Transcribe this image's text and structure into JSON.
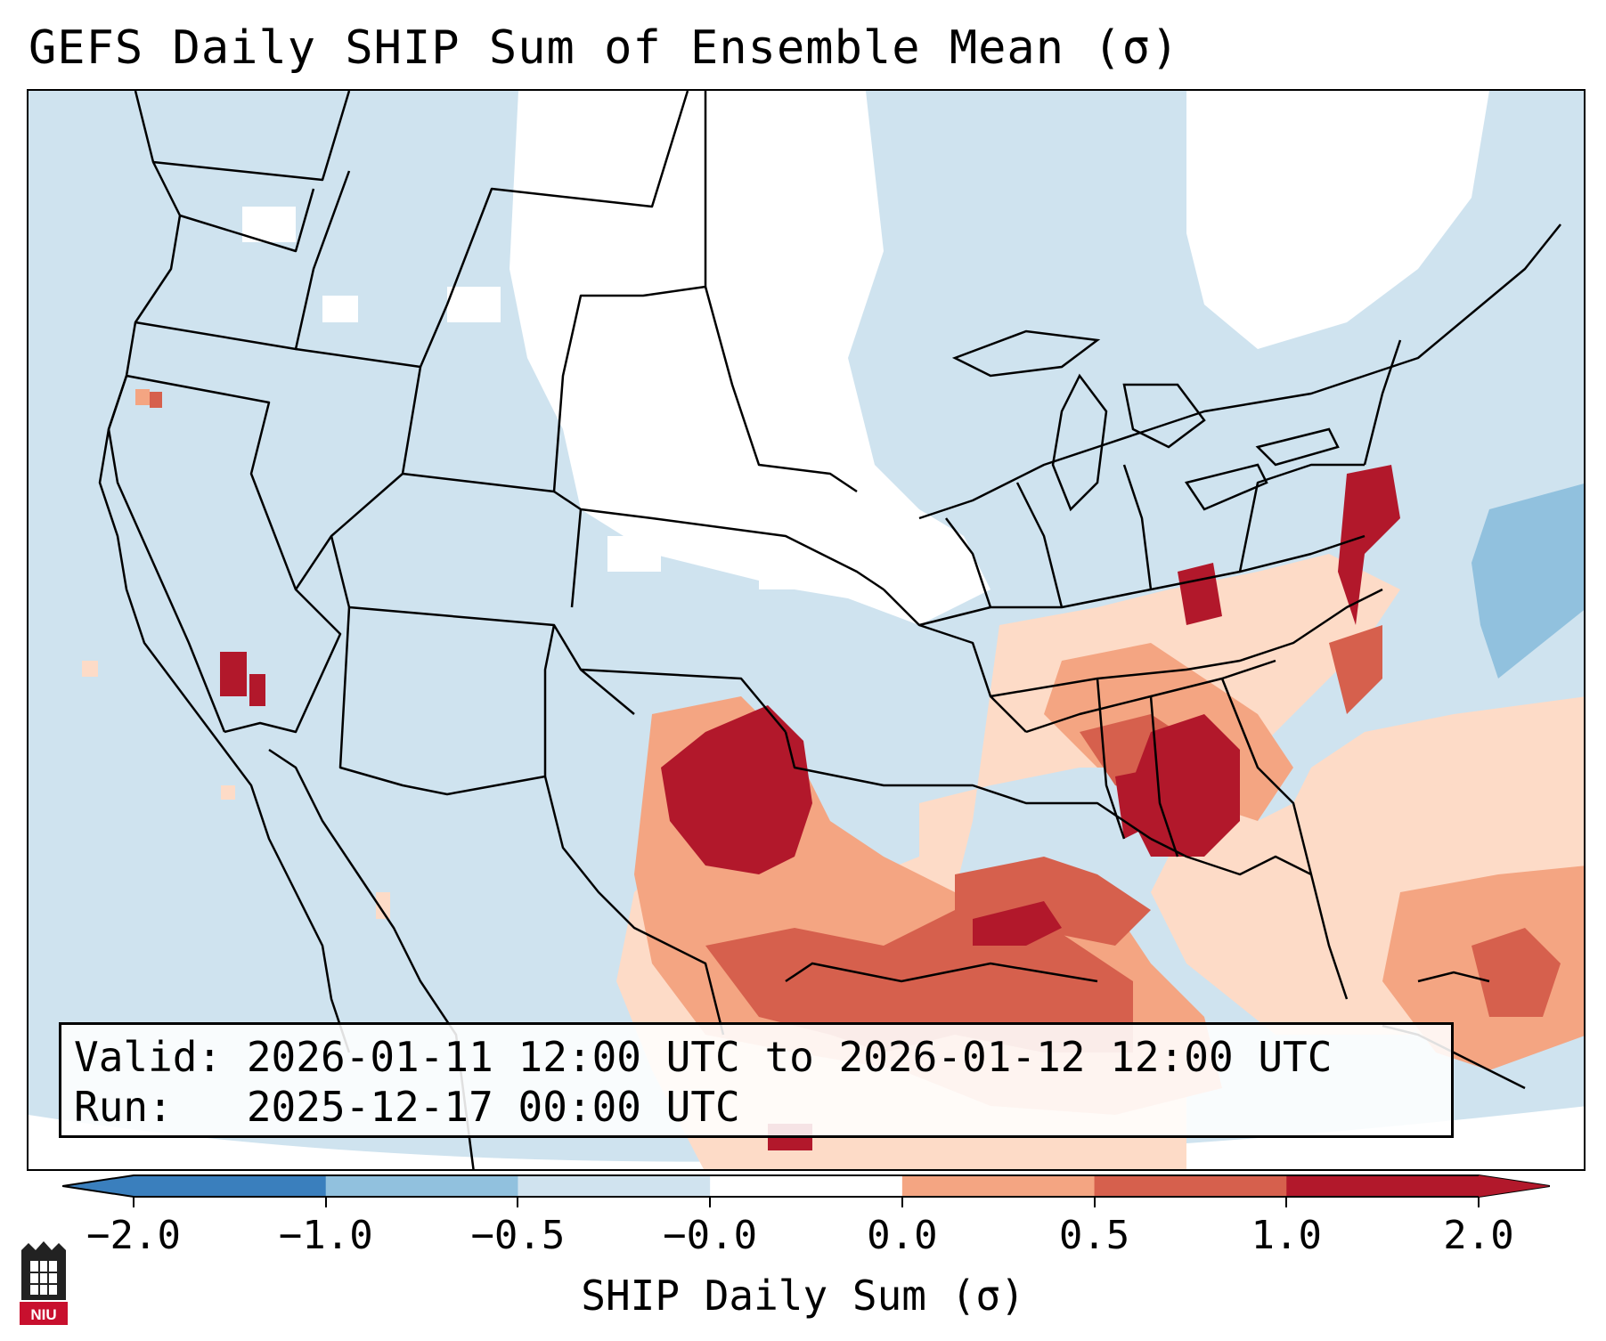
{
  "title": "GEFS Daily SHIP Sum of Ensemble Mean (σ)",
  "info": {
    "valid": "Valid: 2026-01-11 12:00 UTC to 2026-01-12 12:00 UTC",
    "run": "Run:   2025-12-17 00:00 UTC"
  },
  "colorbar": {
    "label": "SHIP Daily Sum (σ)",
    "ticks": [
      "−2.0",
      "−1.0",
      "−0.5",
      "−0.0",
      "0.0",
      "0.5",
      "1.0",
      "2.0"
    ],
    "colors": [
      "#3a7fbd",
      "#91c1de",
      "#d0e3ef",
      "#ffffff",
      "#fddbc7",
      "#f4a582",
      "#d6604d",
      "#b2182b"
    ]
  },
  "logo": {
    "text": "NIU"
  },
  "colors": {
    "ocean_land_base": "#cfe3ef",
    "near_zero": "#ffffff",
    "light_positive": "#fddbc7",
    "medium_positive": "#f4a582",
    "high_positive": "#d6604d",
    "max_positive": "#b2182b",
    "light_negative": "#91c1de"
  }
}
